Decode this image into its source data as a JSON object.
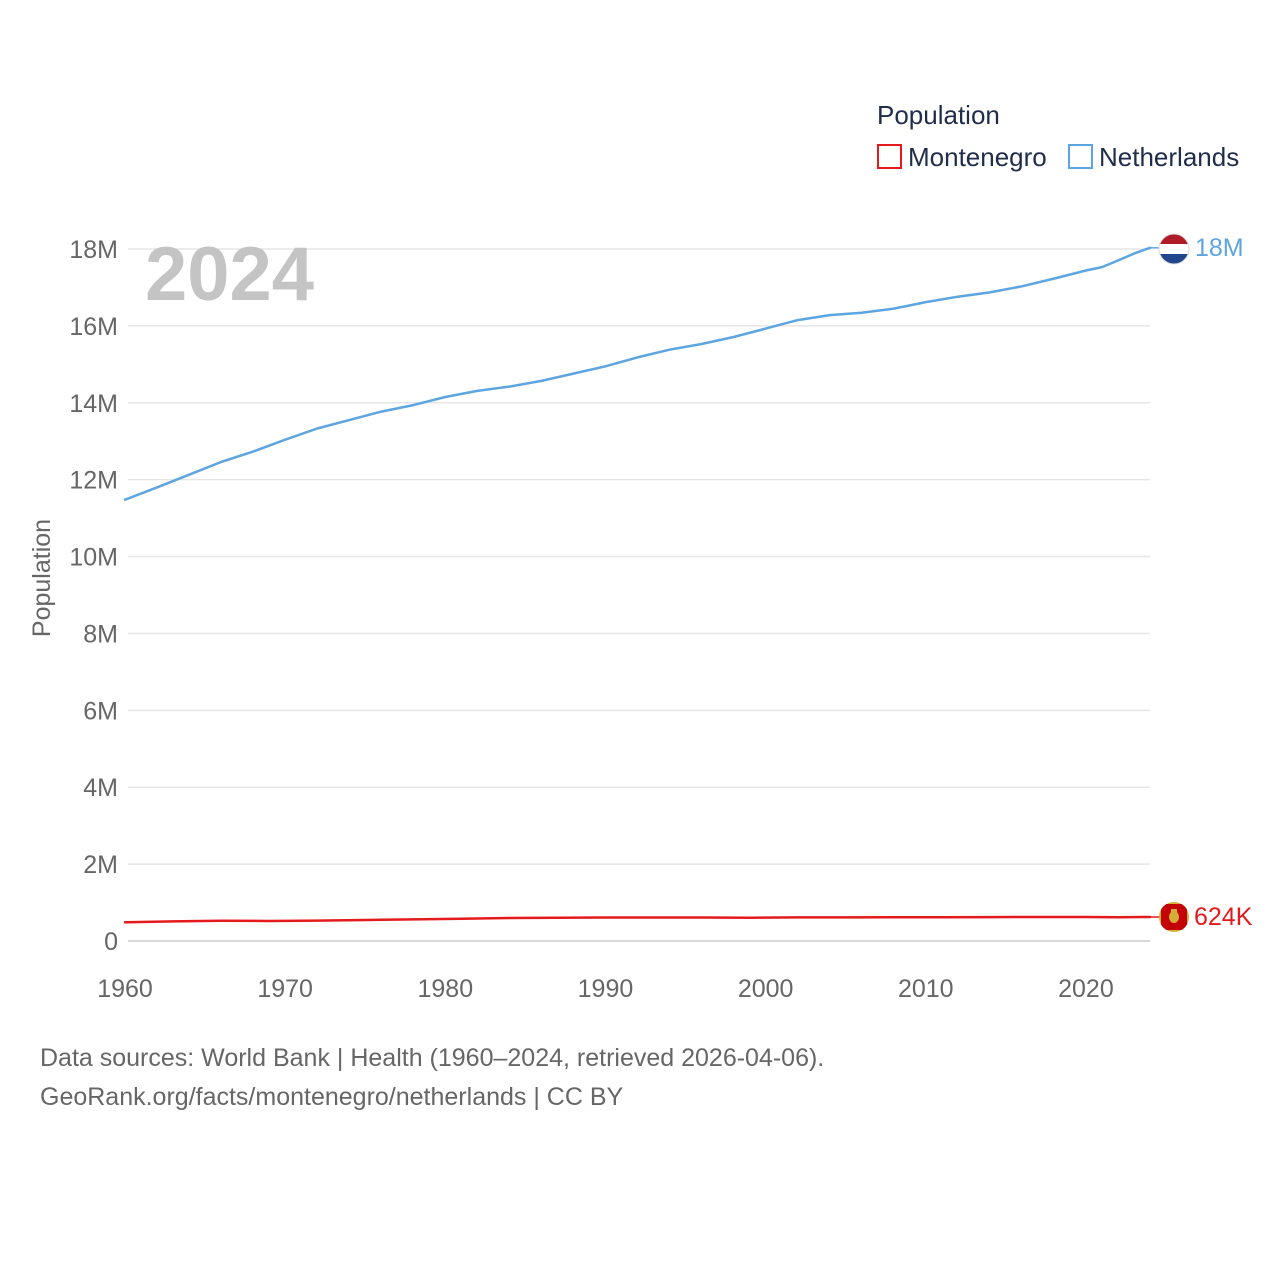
{
  "chart_data": {
    "type": "line",
    "title": "",
    "current_year": "2024",
    "ylabel": "Population",
    "xlabel": "",
    "xlim": [
      1960,
      2024
    ],
    "ylim": [
      0,
      18000000
    ],
    "grid": true,
    "legend": {
      "title": "Population",
      "position": "top-right"
    },
    "x_ticks": [
      {
        "value": 1960,
        "label": "1960"
      },
      {
        "value": 1970,
        "label": "1970"
      },
      {
        "value": 1980,
        "label": "1980"
      },
      {
        "value": 1990,
        "label": "1990"
      },
      {
        "value": 2000,
        "label": "2000"
      },
      {
        "value": 2010,
        "label": "2010"
      },
      {
        "value": 2020,
        "label": "2020"
      }
    ],
    "y_ticks": [
      {
        "value": 0,
        "label": "0"
      },
      {
        "value": 2000000,
        "label": "2M"
      },
      {
        "value": 4000000,
        "label": "4M"
      },
      {
        "value": 6000000,
        "label": "6M"
      },
      {
        "value": 8000000,
        "label": "8M"
      },
      {
        "value": 10000000,
        "label": "10M"
      },
      {
        "value": 12000000,
        "label": "12M"
      },
      {
        "value": 14000000,
        "label": "14M"
      },
      {
        "value": 16000000,
        "label": "16M"
      },
      {
        "value": 18000000,
        "label": "18M"
      }
    ],
    "series": [
      {
        "name": "Montenegro",
        "color": "#e41a1c",
        "end_label": "624K",
        "flag_icon": "montenegro-flag-icon",
        "points": [
          [
            1960,
            487000
          ],
          [
            1963,
            510000
          ],
          [
            1966,
            528000
          ],
          [
            1969,
            520000
          ],
          [
            1972,
            530000
          ],
          [
            1975,
            547000
          ],
          [
            1978,
            562000
          ],
          [
            1981,
            578000
          ],
          [
            1984,
            597000
          ],
          [
            1987,
            607000
          ],
          [
            1990,
            610000
          ],
          [
            1993,
            612000
          ],
          [
            1996,
            610000
          ],
          [
            1999,
            606000
          ],
          [
            2002,
            613000
          ],
          [
            2005,
            614000
          ],
          [
            2008,
            616000
          ],
          [
            2011,
            620000
          ],
          [
            2014,
            622000
          ],
          [
            2017,
            624000
          ],
          [
            2020,
            625000
          ],
          [
            2022,
            620000
          ],
          [
            2024,
            624000
          ]
        ]
      },
      {
        "name": "Netherlands",
        "color": "#5da5e0",
        "end_label": "18M",
        "flag_icon": "netherlands-flag-icon",
        "points": [
          [
            1960,
            11480000
          ],
          [
            1962,
            11800000
          ],
          [
            1964,
            12130000
          ],
          [
            1966,
            12460000
          ],
          [
            1968,
            12730000
          ],
          [
            1970,
            13040000
          ],
          [
            1972,
            13330000
          ],
          [
            1974,
            13550000
          ],
          [
            1976,
            13770000
          ],
          [
            1978,
            13940000
          ],
          [
            1980,
            14150000
          ],
          [
            1982,
            14310000
          ],
          [
            1984,
            14420000
          ],
          [
            1986,
            14570000
          ],
          [
            1988,
            14760000
          ],
          [
            1990,
            14950000
          ],
          [
            1992,
            15180000
          ],
          [
            1994,
            15380000
          ],
          [
            1996,
            15530000
          ],
          [
            1998,
            15710000
          ],
          [
            2000,
            15930000
          ],
          [
            2002,
            16150000
          ],
          [
            2004,
            16280000
          ],
          [
            2006,
            16340000
          ],
          [
            2008,
            16450000
          ],
          [
            2010,
            16620000
          ],
          [
            2012,
            16760000
          ],
          [
            2014,
            16870000
          ],
          [
            2016,
            17030000
          ],
          [
            2018,
            17230000
          ],
          [
            2020,
            17440000
          ],
          [
            2021,
            17530000
          ],
          [
            2022,
            17700000
          ],
          [
            2023,
            17880000
          ],
          [
            2024,
            18030000
          ]
        ]
      }
    ]
  },
  "footer": {
    "line1": "Data sources: World Bank | Health (1960–2024, retrieved 2026-04-06).",
    "line2": "GeoRank.org/facts/montenegro/netherlands | CC BY"
  }
}
